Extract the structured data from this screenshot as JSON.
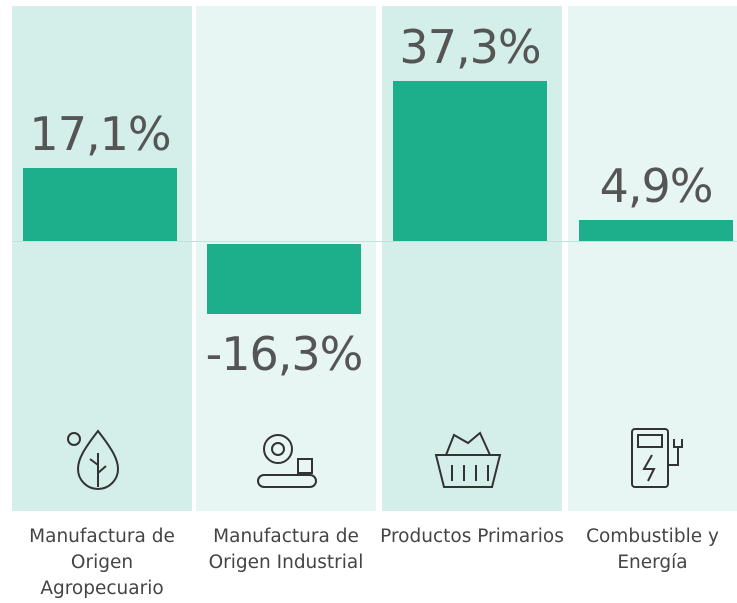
{
  "chart_data": {
    "type": "bar",
    "categories": [
      "Manufactura de Origen Agropecuario",
      "Manufactura de Origen Industrial",
      "Productos Primarios",
      "Combustible y Energía"
    ],
    "values": [
      17.1,
      -16.3,
      37.3,
      4.9
    ],
    "value_labels": [
      "17,1%",
      "-16,3%",
      "37,3%",
      "4,9%"
    ],
    "color": "#1daf8c"
  }
}
